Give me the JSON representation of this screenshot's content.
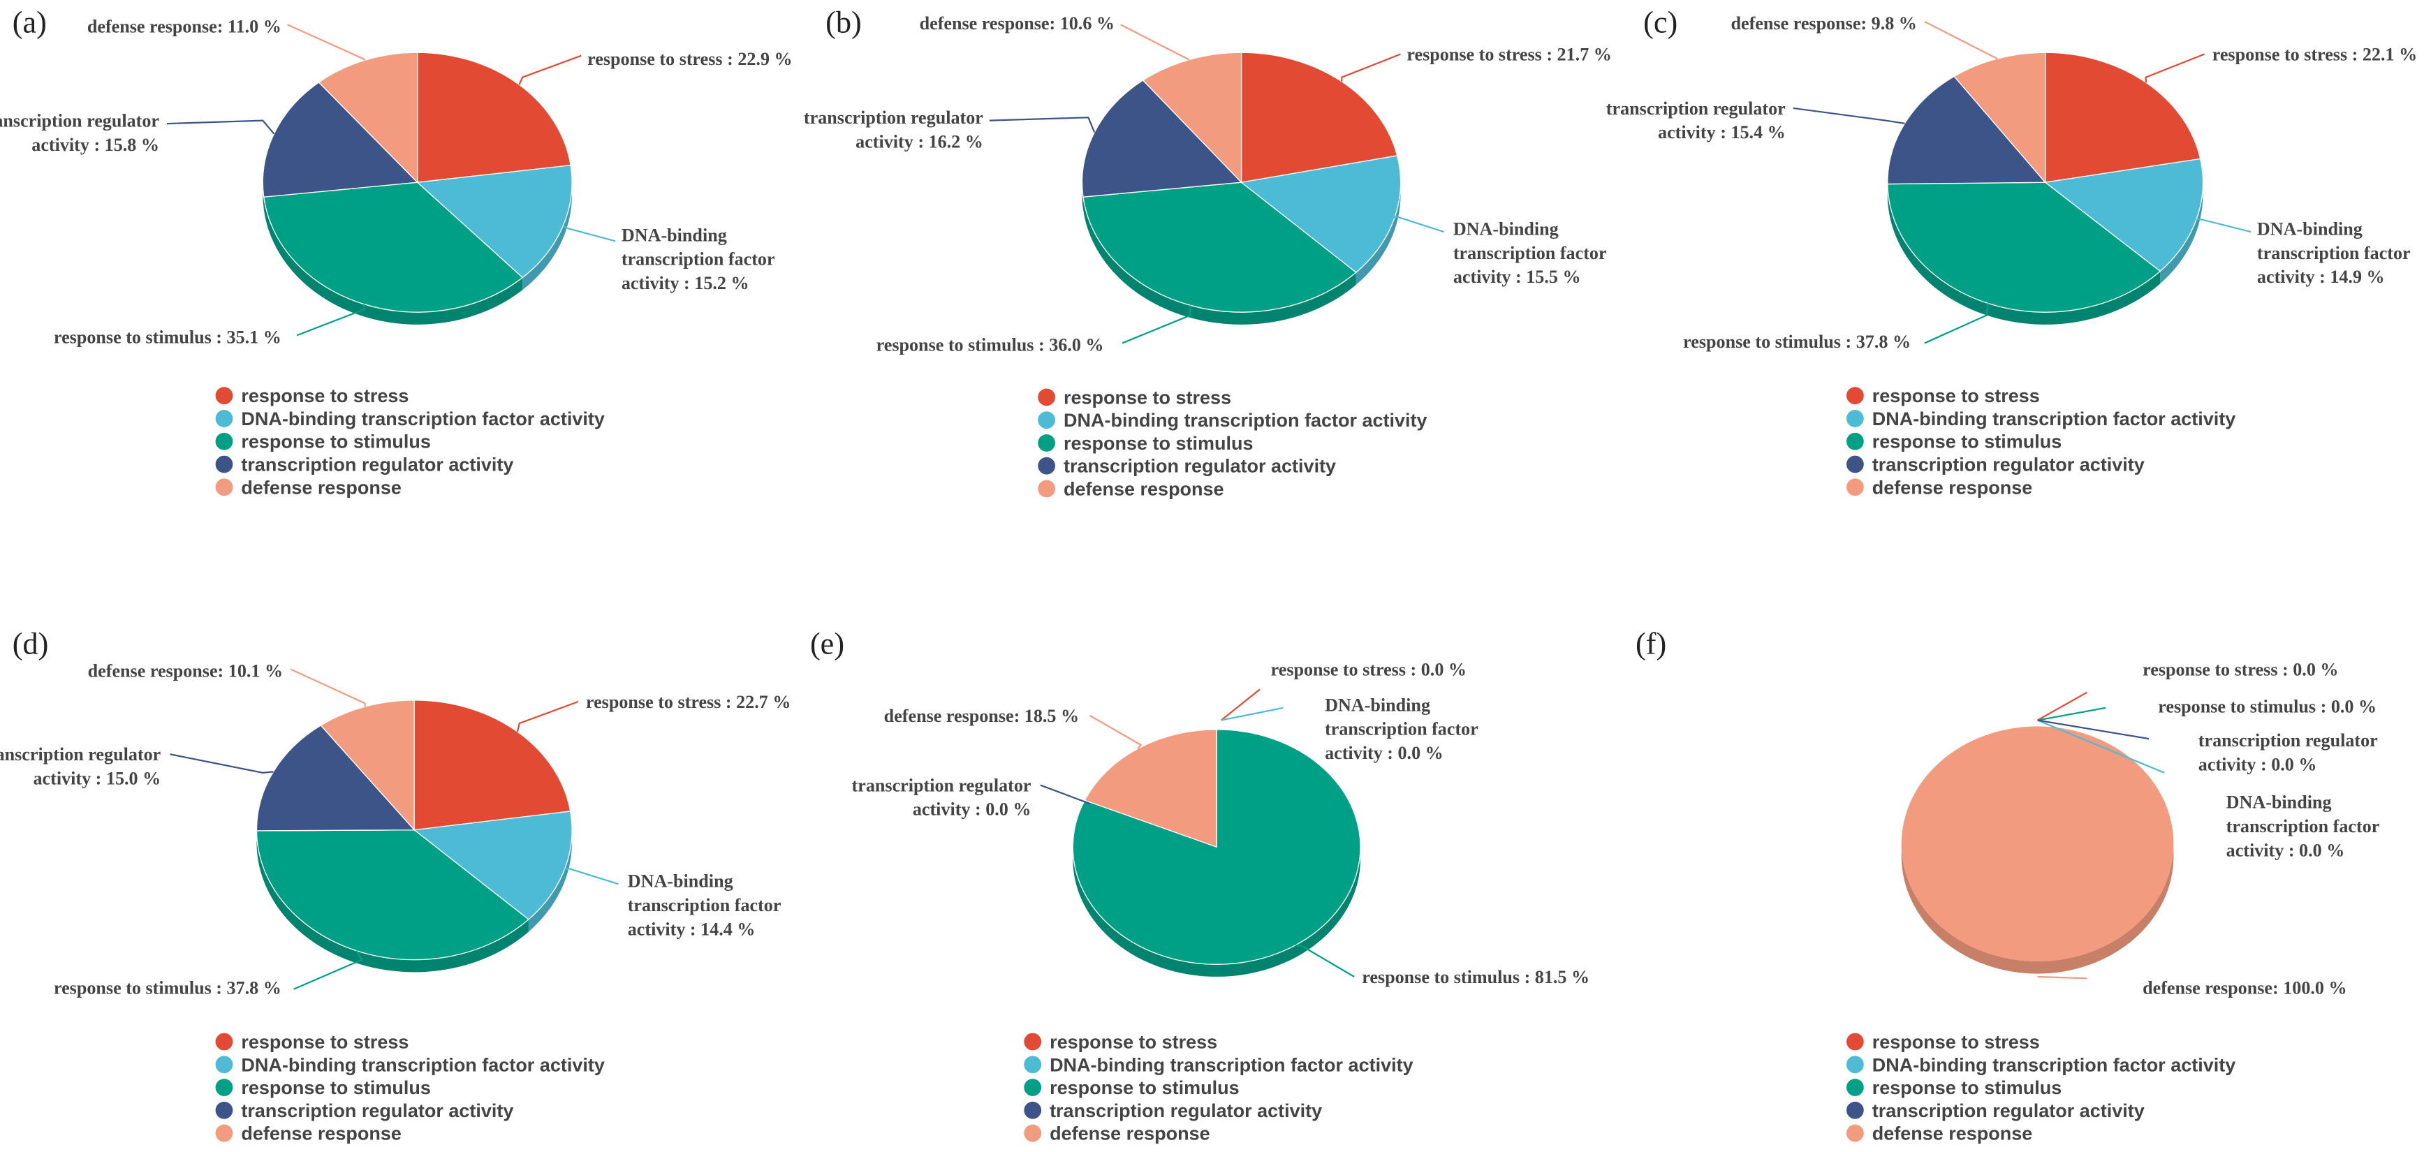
{
  "colors": {
    "response to stress": "#E24A33",
    "DNA-binding transcription factor activity": "#4DBBD5",
    "response to stimulus": "#00A087",
    "transcription regulator activity": "#3C5488",
    "defense response": "#F39B7F"
  },
  "chart_data": [
    {
      "panel": "(a)",
      "type": "pie",
      "slices": [
        {
          "name": "response to stress",
          "value": 22.9,
          "label": [
            "response to stress : 22.9 %"
          ]
        },
        {
          "name": "DNA-binding transcription factor activity",
          "value": 15.2,
          "label": [
            "DNA-binding",
            "transcription factor",
            "activity : 15.2 %"
          ]
        },
        {
          "name": "response to stimulus",
          "value": 35.1,
          "label": [
            "response to stimulus : 35.1 %"
          ]
        },
        {
          "name": "transcription regulator activity",
          "value": 15.8,
          "label": [
            "transcription regulator",
            "activity : 15.8 %"
          ]
        },
        {
          "name": "defense response",
          "value": 11.0,
          "label": [
            "defense response: 11.0 %"
          ]
        }
      ],
      "legend": [
        "response to stress",
        "DNA-binding transcription factor activity",
        "response to stimulus",
        "transcription regulator activity",
        "defense response"
      ]
    },
    {
      "panel": "(b)",
      "type": "pie",
      "slices": [
        {
          "name": "response to stress",
          "value": 21.7,
          "label": [
            "response to stress : 21.7 %"
          ]
        },
        {
          "name": "DNA-binding transcription factor activity",
          "value": 15.5,
          "label": [
            "DNA-binding",
            "transcription factor",
            "activity : 15.5 %"
          ]
        },
        {
          "name": "response to stimulus",
          "value": 36.0,
          "label": [
            "response to stimulus : 36.0 %"
          ]
        },
        {
          "name": "transcription regulator activity",
          "value": 16.2,
          "label": [
            "transcription regulator",
            "activity : 16.2 %"
          ]
        },
        {
          "name": "defense response",
          "value": 10.6,
          "label": [
            "defense response: 10.6 %"
          ]
        }
      ],
      "legend": [
        "response to stress",
        "DNA-binding transcription factor activity",
        "response to stimulus",
        "transcription regulator activity",
        "defense response"
      ]
    },
    {
      "panel": "(c)",
      "type": "pie",
      "slices": [
        {
          "name": "response to stress",
          "value": 22.1,
          "label": [
            "response to stress : 22.1 %"
          ]
        },
        {
          "name": "DNA-binding transcription factor activity",
          "value": 14.9,
          "label": [
            "DNA-binding",
            "transcription factor",
            "activity : 14.9 %"
          ]
        },
        {
          "name": "response to stimulus",
          "value": 37.8,
          "label": [
            "response to stimulus : 37.8 %"
          ]
        },
        {
          "name": "transcription regulator activity",
          "value": 15.4,
          "label": [
            "transcription regulator",
            "activity : 15.4 %"
          ]
        },
        {
          "name": "defense response",
          "value": 9.8,
          "label": [
            "defense response: 9.8 %"
          ]
        }
      ],
      "legend": [
        "response to stress",
        "DNA-binding transcription factor activity",
        "response to stimulus",
        "transcription regulator activity",
        "defense response"
      ]
    },
    {
      "panel": "(d)",
      "type": "pie",
      "slices": [
        {
          "name": "response to stress",
          "value": 22.7,
          "label": [
            "response to stress : 22.7 %"
          ]
        },
        {
          "name": "DNA-binding transcription factor activity",
          "value": 14.4,
          "label": [
            "DNA-binding",
            "transcription factor",
            "activity : 14.4 %"
          ]
        },
        {
          "name": "response to stimulus",
          "value": 37.8,
          "label": [
            "response to stimulus : 37.8 %"
          ]
        },
        {
          "name": "transcription regulator activity",
          "value": 15.0,
          "label": [
            "transcription regulator",
            "activity : 15.0 %"
          ]
        },
        {
          "name": "defense response",
          "value": 10.1,
          "label": [
            "defense response: 10.1 %"
          ]
        }
      ],
      "legend": [
        "response to stress",
        "DNA-binding transcription factor activity",
        "response to stimulus",
        "transcription regulator activity",
        "defense response"
      ]
    },
    {
      "panel": "(e)",
      "type": "pie",
      "slices": [
        {
          "name": "response to stress",
          "value": 0.0,
          "label": [
            "response to stress : 0.0 %"
          ]
        },
        {
          "name": "DNA-binding transcription factor activity",
          "value": 0.0,
          "label": [
            "DNA-binding",
            "transcription factor",
            "activity : 0.0 %"
          ]
        },
        {
          "name": "response to stimulus",
          "value": 81.5,
          "label": [
            "response to stimulus : 81.5 %"
          ]
        },
        {
          "name": "transcription regulator activity",
          "value": 0.0,
          "label": [
            "transcription regulator",
            "activity : 0.0 %"
          ]
        },
        {
          "name": "defense response",
          "value": 18.5,
          "label": [
            "defense response: 18.5 %"
          ]
        }
      ],
      "legend": [
        "response to stress",
        "DNA-binding transcription factor activity",
        "response to stimulus",
        "transcription regulator activity",
        "defense response"
      ]
    },
    {
      "panel": "(f)",
      "type": "pie",
      "slices": [
        {
          "name": "response to stress",
          "value": 0.0,
          "label": [
            "response to stress : 0.0 %"
          ]
        },
        {
          "name": "DNA-binding transcription factor activity",
          "value": 0.0,
          "label": [
            "DNA-binding",
            "transcription factor",
            "activity : 0.0 %"
          ]
        },
        {
          "name": "response to stimulus",
          "value": 0.0,
          "label": [
            "response to stimulus : 0.0 %"
          ]
        },
        {
          "name": "transcription regulator activity",
          "value": 0.0,
          "label": [
            "transcription regulator",
            "activity : 0.0 %"
          ]
        },
        {
          "name": "defense response",
          "value": 100.0,
          "label": [
            "defense response: 100.0 %"
          ]
        }
      ],
      "legend": [
        "response to stress",
        "DNA-binding transcription factor activity",
        "response to stimulus",
        "transcription regulator activity",
        "defense response"
      ]
    }
  ]
}
